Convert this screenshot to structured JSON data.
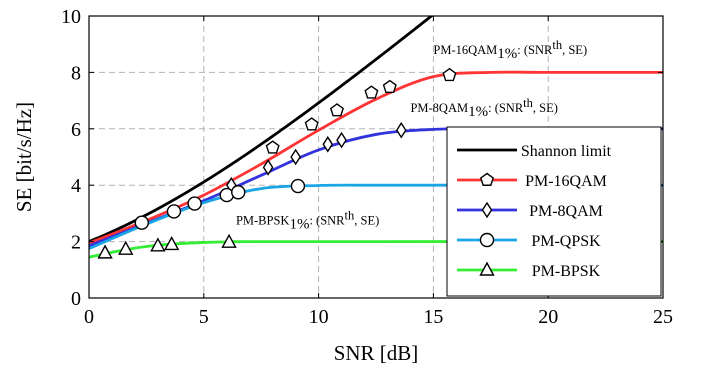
{
  "chart_data": {
    "type": "line",
    "xlabel": "SNR [dB]",
    "ylabel": "SE [bit/s/Hz]",
    "xlim": [
      0,
      25
    ],
    "ylim": [
      0,
      10
    ],
    "xticks": [
      0,
      5,
      10,
      15,
      20,
      25
    ],
    "yticks": [
      0,
      2,
      4,
      6,
      8,
      10
    ],
    "grid": true,
    "legend_position": "bottom-right",
    "series": [
      {
        "name": "Shannon limit",
        "color": "#000000",
        "marker": "none",
        "curve": "shannon",
        "x": [
          0,
          1,
          2,
          3,
          4,
          5,
          6,
          7,
          8,
          9,
          10,
          11,
          12,
          13,
          14,
          15,
          15.3
        ],
        "y": [
          2.0,
          2.25,
          2.52,
          2.82,
          3.15,
          3.5,
          3.89,
          4.31,
          4.76,
          5.23,
          5.72,
          6.24,
          6.78,
          7.33,
          7.9,
          8.49,
          10.0
        ]
      },
      {
        "name": "PM-16QAM",
        "color": "#ff3333",
        "marker": "pentagon",
        "x": [
          0,
          2.5,
          5,
          7.5,
          10,
          12.5,
          15,
          17.5,
          20,
          25
        ],
        "y": [
          1.95,
          2.75,
          3.65,
          4.75,
          5.95,
          7.05,
          7.85,
          8.0,
          8.0,
          8.0
        ],
        "marker_x": [
          8.0,
          9.7,
          10.8,
          12.3,
          13.1,
          15.7
        ],
        "marker_y": [
          5.33,
          6.15,
          6.65,
          7.28,
          7.48,
          7.9
        ]
      },
      {
        "name": "PM-8QAM",
        "color": "#3333dd",
        "marker": "diamond",
        "x": [
          0,
          2.5,
          5,
          7.5,
          10,
          12.5,
          15,
          17.5,
          20,
          25
        ],
        "y": [
          1.85,
          2.65,
          3.45,
          4.35,
          5.25,
          5.8,
          5.98,
          6.0,
          6.0,
          6.0
        ],
        "marker_x": [
          6.2,
          7.8,
          9.0,
          10.4,
          11.0,
          13.6
        ],
        "marker_y": [
          4.0,
          4.63,
          5.0,
          5.45,
          5.6,
          5.95
        ]
      },
      {
        "name": "PM-QPSK",
        "color": "#19a5e6",
        "marker": "circle",
        "x": [
          0,
          2.5,
          5,
          7.5,
          10,
          12.5,
          15,
          25
        ],
        "y": [
          1.75,
          2.62,
          3.38,
          3.88,
          3.99,
          4.0,
          4.0,
          4.0
        ],
        "marker_x": [
          2.3,
          3.7,
          4.6,
          6.0,
          6.5,
          9.1
        ],
        "marker_y": [
          2.67,
          3.07,
          3.35,
          3.65,
          3.75,
          3.97
        ]
      },
      {
        "name": "PM-BPSK",
        "color": "#33ee33",
        "marker": "triangle",
        "x": [
          0,
          1,
          2,
          3,
          4,
          5,
          6,
          8,
          25
        ],
        "y": [
          1.45,
          1.62,
          1.77,
          1.87,
          1.93,
          1.97,
          1.99,
          2.0,
          2.0
        ],
        "marker_x": [
          0.7,
          1.6,
          3.0,
          3.6,
          6.1
        ],
        "marker_y": [
          1.6,
          1.73,
          1.85,
          1.9,
          1.98
        ]
      }
    ],
    "annotations": [
      {
        "label": "PM-16QAM",
        "sub": "1%",
        "rest": ": (SNR",
        "sup": "th",
        "end": ", SE)",
        "x": 15.0,
        "y": 8.65
      },
      {
        "label": "PM-8QAM",
        "sub": "1%",
        "rest": ": (SNR",
        "sup": "th",
        "end": ", SE)",
        "x": 14.0,
        "y": 6.6
      },
      {
        "label": "PM-BPSK",
        "sub": "1%",
        "rest": ": (SNR",
        "sup": "th",
        "end": ", SE)",
        "x": 6.4,
        "y": 2.6
      }
    ]
  }
}
